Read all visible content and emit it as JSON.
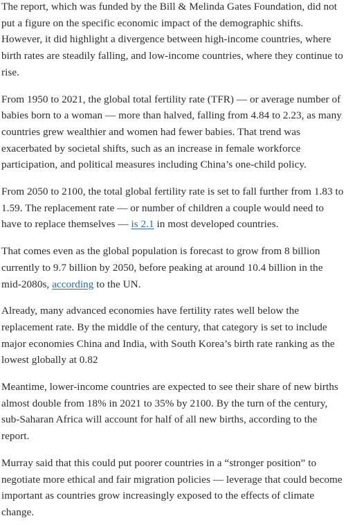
{
  "article": {
    "p1": "The report, which was funded by the Bill & Melinda Gates Foundation, did not put a figure on the specific economic impact of the demographic shifts. However, it did highlight a divergence between high-income countries, where birth rates are steadily falling, and low-income countries, where they continue to rise.",
    "p2": "From 1950 to 2021, the global total fertility rate (TFR) — or average number of babies born to a woman — more than halved, falling from 4.84 to 2.23, as many countries grew wealthier and women had fewer babies. That trend was exacerbated by societal shifts, such as an increase in female workforce participation, and political measures including China’s one-child policy.",
    "p3_before": "From 2050 to 2100, the total global fertility rate is set to fall further from 1.83 to 1.59. The replacement rate — or number of children a couple would need to have to replace themselves — ",
    "p3_link": "is 2.1",
    "p3_after": " in most developed countries.",
    "p4_before": "That comes even as the global population is forecast to grow from 8 billion currently to 9.7 billion by 2050, before peaking at around 10.4 billion in the mid-2080s, ",
    "p4_link": "according",
    "p4_after": " to the UN.",
    "p5": "Already, many advanced economies have fertility rates well below the replacement rate. By the middle of the century, that category is set to include major economies China and India, with South Korea’s birth rate ranking as the lowest globally at 0.82",
    "p6": "Meantime, lower-income countries are expected to see their share of new births almost double from 18% in 2021 to 35% by 2100. By the turn of the century, sub-Saharan Africa will account for half of all new births, according to the report.",
    "p7": "Murray said that this could put poorer countries in a “stronger position” to negotiate more ethical and fair migration policies — leverage that could become important as countries grow increasingly exposed to the effects of climate change."
  }
}
